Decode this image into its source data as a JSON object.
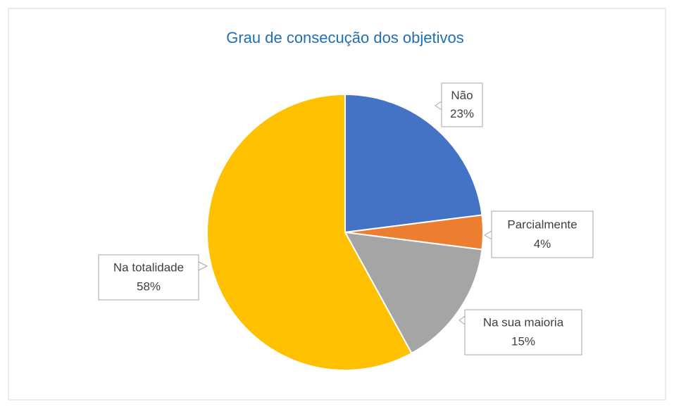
{
  "chart_data": {
    "type": "pie",
    "title": "Grau de consecução dos objetivos",
    "categories": [
      "Não",
      "Parcialmente",
      "Na sua maioria",
      "Na totalidade"
    ],
    "values": [
      23,
      4,
      15,
      58
    ],
    "value_labels": [
      "23%",
      "4%",
      "15%",
      "58%"
    ],
    "colors": [
      "#4472c4",
      "#ed7d31",
      "#a5a5a5",
      "#ffc000"
    ]
  }
}
